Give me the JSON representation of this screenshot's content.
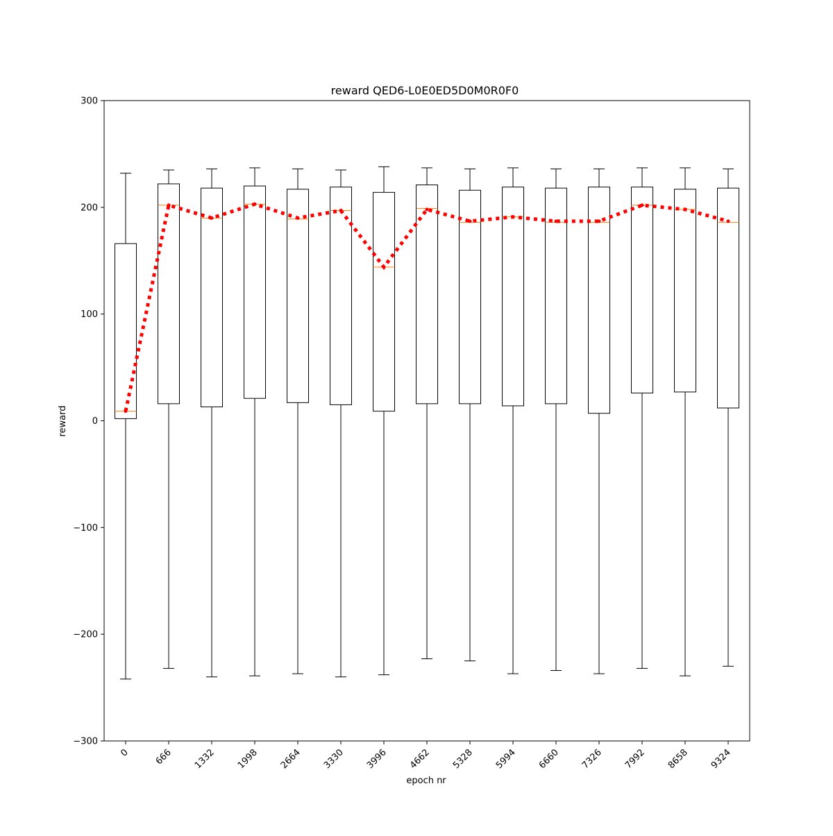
{
  "chart_data": {
    "type": "box",
    "title": "reward QED6-L0E0ED5D0M0R0F0",
    "xlabel": "epoch nr",
    "ylabel": "reward",
    "ylim": [
      -300,
      300
    ],
    "yticks": [
      -300,
      -200,
      -100,
      0,
      100,
      200,
      300
    ],
    "ytick_labels": [
      "−300",
      "−200",
      "−100",
      "0",
      "100",
      "200",
      "300"
    ],
    "categories": [
      "0",
      "666",
      "1332",
      "1998",
      "2664",
      "3330",
      "3996",
      "4662",
      "5328",
      "5994",
      "6660",
      "7326",
      "7992",
      "8658",
      "9324"
    ],
    "boxes": [
      {
        "whisker_low": -242,
        "q1": 2,
        "median": 9,
        "q3": 166,
        "whisker_high": 232
      },
      {
        "whisker_low": -232,
        "q1": 16,
        "median": 202,
        "q3": 222,
        "whisker_high": 235
      },
      {
        "whisker_low": -240,
        "q1": 13,
        "median": 190,
        "q3": 218,
        "whisker_high": 236
      },
      {
        "whisker_low": -239,
        "q1": 21,
        "median": 203,
        "q3": 220,
        "whisker_high": 237
      },
      {
        "whisker_low": -237,
        "q1": 17,
        "median": 189,
        "q3": 217,
        "whisker_high": 236
      },
      {
        "whisker_low": -240,
        "q1": 15,
        "median": 197,
        "q3": 219,
        "whisker_high": 235
      },
      {
        "whisker_low": -238,
        "q1": 9,
        "median": 144,
        "q3": 214,
        "whisker_high": 238
      },
      {
        "whisker_low": -223,
        "q1": 16,
        "median": 199,
        "q3": 221,
        "whisker_high": 237
      },
      {
        "whisker_low": -225,
        "q1": 16,
        "median": 186,
        "q3": 216,
        "whisker_high": 236
      },
      {
        "whisker_low": -237,
        "q1": 14,
        "median": 191,
        "q3": 219,
        "whisker_high": 237
      },
      {
        "whisker_low": -234,
        "q1": 16,
        "median": 186,
        "q3": 218,
        "whisker_high": 236
      },
      {
        "whisker_low": -237,
        "q1": 7,
        "median": 186,
        "q3": 219,
        "whisker_high": 236
      },
      {
        "whisker_low": -232,
        "q1": 26,
        "median": 202,
        "q3": 219,
        "whisker_high": 237
      },
      {
        "whisker_low": -239,
        "q1": 27,
        "median": 198,
        "q3": 217,
        "whisker_high": 237
      },
      {
        "whisker_low": -230,
        "q1": 12,
        "median": 186,
        "q3": 218,
        "whisker_high": 236
      }
    ],
    "mean_line": {
      "values": [
        9,
        202,
        190,
        203,
        190,
        197,
        144,
        198,
        187,
        191,
        187,
        187,
        202,
        198,
        187
      ],
      "color": "#ff0000",
      "style": "dotted"
    },
    "colors": {
      "box": "#000000",
      "median": "#ff7f0e",
      "mean_line": "#ff0000"
    },
    "grid": false,
    "legend": "none"
  }
}
